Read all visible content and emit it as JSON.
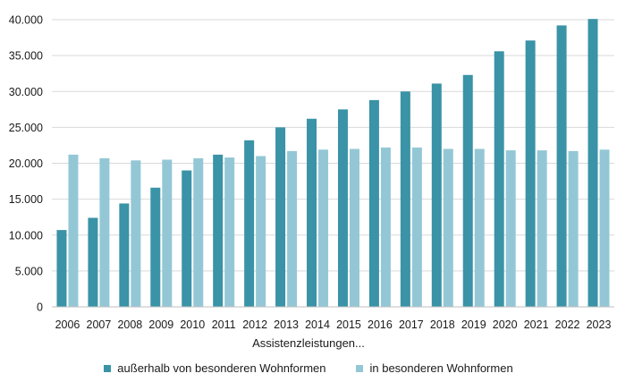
{
  "chart_data": {
    "type": "bar",
    "xlabel": "Assistenzleistungen...",
    "ylabel": "",
    "ylim": [
      0,
      40000
    ],
    "yticks": [
      0,
      5000,
      10000,
      15000,
      20000,
      25000,
      30000,
      35000,
      40000
    ],
    "ytick_labels": [
      "0",
      "5.000",
      "10.000",
      "15.000",
      "20.000",
      "25.000",
      "30.000",
      "35.000",
      "40.000"
    ],
    "categories": [
      "2006",
      "2007",
      "2008",
      "2009",
      "2010",
      "2011",
      "2012",
      "2013",
      "2014",
      "2015",
      "2016",
      "2017",
      "2018",
      "2019",
      "2020",
      "2021",
      "2022",
      "2023"
    ],
    "grid": true,
    "legend_position": "bottom",
    "series": [
      {
        "name": "außerhalb von besonderen Wohnformen",
        "color": "#3a93a6",
        "values": [
          10700,
          12400,
          14400,
          16600,
          19000,
          21200,
          23200,
          25000,
          26200,
          27500,
          28800,
          30000,
          31100,
          32300,
          35600,
          37100,
          39200,
          40100
        ]
      },
      {
        "name": "in besonderen Wohnformen",
        "color": "#94c7d6",
        "values": [
          21200,
          20700,
          20400,
          20500,
          20700,
          20800,
          21000,
          21700,
          21900,
          22000,
          22200,
          22200,
          22000,
          22000,
          21800,
          21800,
          21700,
          21900
        ]
      }
    ]
  }
}
